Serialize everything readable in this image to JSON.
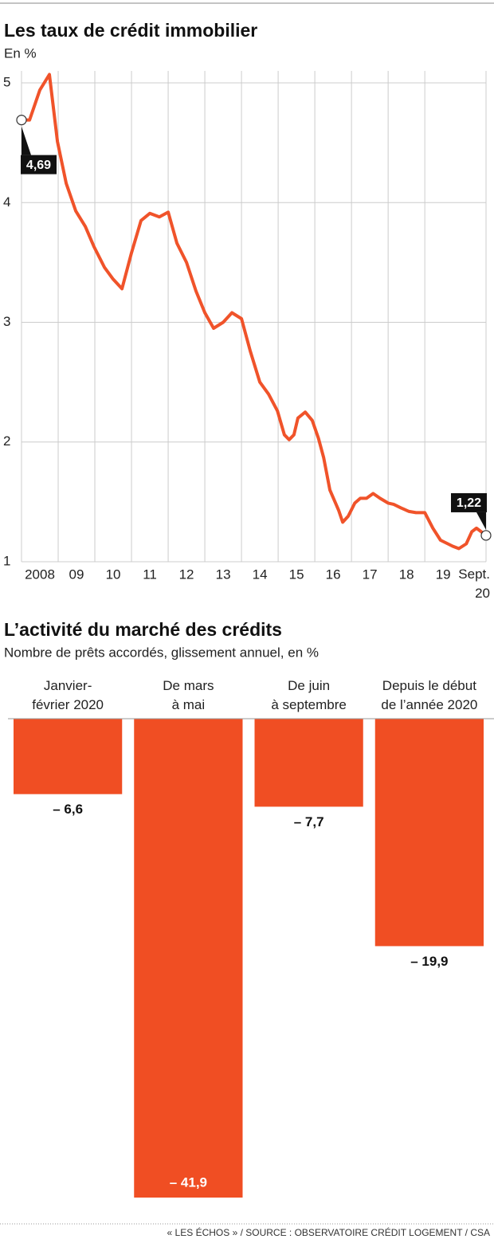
{
  "chart_data": [
    {
      "type": "line",
      "title": "Les taux de crédit immobilier",
      "subtitle": "En %",
      "x": [
        2008.0,
        2008.22,
        2008.5,
        2008.76,
        2008.98,
        2009.22,
        2009.48,
        2009.74,
        2009.98,
        2010.26,
        2010.5,
        2010.74,
        2011.0,
        2011.26,
        2011.5,
        2011.76,
        2012.0,
        2012.24,
        2012.5,
        2012.76,
        2013.0,
        2013.24,
        2013.5,
        2013.74,
        2014.0,
        2014.24,
        2014.5,
        2014.74,
        2014.98,
        2015.17,
        2015.3,
        2015.43,
        2015.54,
        2015.74,
        2015.93,
        2016.1,
        2016.24,
        2016.41,
        2016.65,
        2016.76,
        2016.91,
        2017.09,
        2017.24,
        2017.41,
        2017.59,
        2017.78,
        2018.0,
        2018.15,
        2018.35,
        2018.57,
        2018.76,
        2019.0,
        2019.22,
        2019.43,
        2019.63,
        2019.76,
        2019.93,
        2020.13,
        2020.28,
        2020.41,
        2020.54,
        2020.67
      ],
      "values": [
        4.69,
        4.69,
        4.94,
        5.07,
        4.51,
        4.16,
        3.93,
        3.8,
        3.63,
        3.46,
        3.36,
        3.28,
        3.58,
        3.85,
        3.91,
        3.88,
        3.92,
        3.66,
        3.5,
        3.26,
        3.08,
        2.95,
        3.0,
        3.08,
        3.03,
        2.76,
        2.5,
        2.4,
        2.26,
        2.06,
        2.02,
        2.06,
        2.2,
        2.25,
        2.18,
        2.03,
        1.87,
        1.6,
        1.43,
        1.33,
        1.38,
        1.49,
        1.53,
        1.53,
        1.57,
        1.53,
        1.49,
        1.48,
        1.45,
        1.42,
        1.41,
        1.41,
        1.28,
        1.18,
        1.15,
        1.13,
        1.11,
        1.15,
        1.25,
        1.28,
        1.25,
        1.22
      ],
      "value_labels": [
        "4,69",
        null,
        null,
        null,
        null,
        null,
        null,
        null,
        null,
        null,
        null,
        null,
        null,
        null,
        null,
        null,
        null,
        null,
        null,
        null,
        null,
        null,
        null,
        null,
        null,
        null,
        null,
        null,
        null,
        null,
        null,
        null,
        null,
        null,
        null,
        null,
        null,
        null,
        null,
        null,
        null,
        null,
        null,
        null,
        null,
        null,
        null,
        null,
        null,
        null,
        null,
        null,
        null,
        null,
        null,
        null,
        null,
        null,
        null,
        null,
        null,
        "1,22"
      ],
      "color": "#f0532a",
      "xlim": [
        2008,
        2020.67
      ],
      "xticks": [
        {
          "value": 2008,
          "label": "2008"
        },
        {
          "value": 2009,
          "label": "09"
        },
        {
          "value": 2010,
          "label": "10"
        },
        {
          "value": 2011,
          "label": "11"
        },
        {
          "value": 2012,
          "label": "12"
        },
        {
          "value": 2013,
          "label": "13"
        },
        {
          "value": 2014,
          "label": "14"
        },
        {
          "value": 2015,
          "label": "15"
        },
        {
          "value": 2016,
          "label": "16"
        },
        {
          "value": 2017,
          "label": "17"
        },
        {
          "value": 2018,
          "label": "18"
        },
        {
          "value": 2019,
          "label": "19"
        },
        {
          "value": 2020.67,
          "label": [
            "Sept.",
            "20"
          ]
        }
      ],
      "ylim": [
        1,
        5.1
      ],
      "yticks": [
        1,
        2,
        3,
        4,
        5
      ],
      "grid": true
    },
    {
      "type": "bar",
      "title": "L’activité du marché des crédits",
      "subtitle": "Nombre de prêts accordés, glissement annuel, en %",
      "categories": [
        [
          "Janvier-",
          "février 2020"
        ],
        [
          "De mars",
          "à mai"
        ],
        [
          "De juin",
          "à septembre"
        ],
        [
          "Depuis le début",
          "de l’année 2020"
        ]
      ],
      "values": [
        -6.6,
        -41.9,
        -7.7,
        -19.9
      ],
      "value_labels": [
        "– 6,6",
        "– 41,9",
        "– 7,7",
        "– 19,9"
      ],
      "color": "#f04e23"
    }
  ],
  "source": "« LES ÉCHOS » / SOURCE : OBSERVATOIRE CRÉDIT LOGEMENT / CSA"
}
